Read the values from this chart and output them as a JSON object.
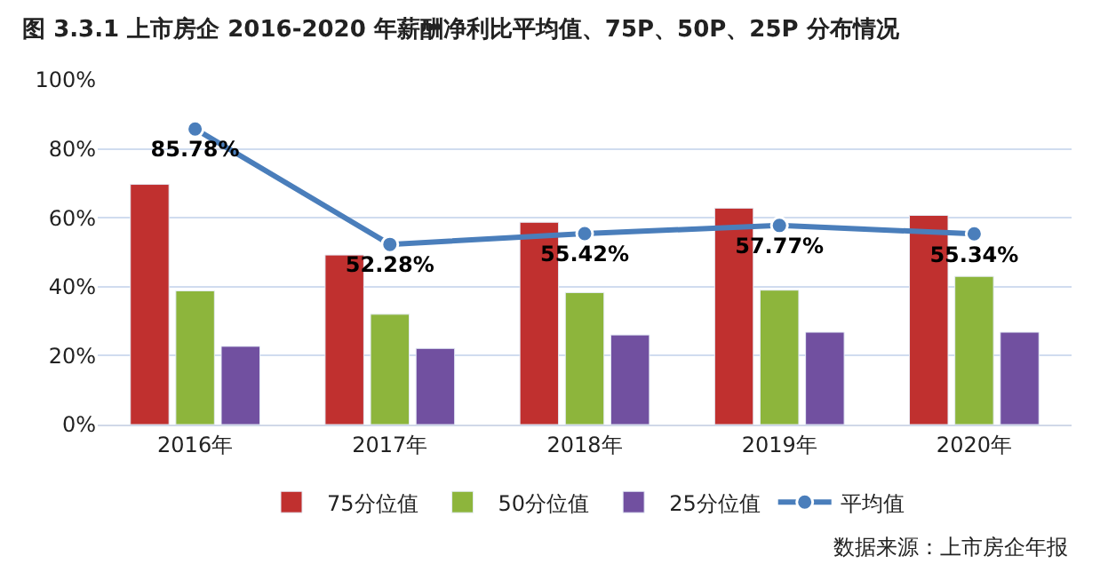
{
  "chart_data": {
    "type": "bar",
    "title": "图 3.3.1 上市房企 2016-2020 年薪酬净利比平均值、75P、50P、25P 分布情况",
    "categories": [
      "2016年",
      "2017年",
      "2018年",
      "2019年",
      "2020年"
    ],
    "series": [
      {
        "name": "75分位值",
        "color": "#c0302f",
        "values": [
          69.7,
          49.2,
          58.7,
          62.8,
          60.7
        ]
      },
      {
        "name": "50分位值",
        "color": "#8db53c",
        "values": [
          38.8,
          32,
          38.3,
          39,
          43
        ]
      },
      {
        "name": "25分位值",
        "color": "#7150a0",
        "values": [
          22.7,
          22.1,
          26,
          26.8,
          26.8
        ]
      },
      {
        "name": "平均值",
        "type": "line",
        "color": "#4a7ebb",
        "marker": "circle",
        "values": [
          85.78,
          52.28,
          55.42,
          57.77,
          55.34
        ],
        "value_labels": [
          "85.78%",
          "52.28%",
          "55.42%",
          "57.77%",
          "55.34%"
        ]
      }
    ],
    "ylim": [
      0,
      100
    ],
    "yticks": [
      {
        "value": 0,
        "label": "0%"
      },
      {
        "value": 20,
        "label": "20%"
      },
      {
        "value": 40,
        "label": "40%"
      },
      {
        "value": 60,
        "label": "60%"
      },
      {
        "value": 80,
        "label": "80%"
      },
      {
        "value": 100,
        "label": "100%"
      }
    ],
    "grid": "y",
    "legend": "bottom",
    "annotations": [
      "数据来源：上市房企年报"
    ]
  }
}
